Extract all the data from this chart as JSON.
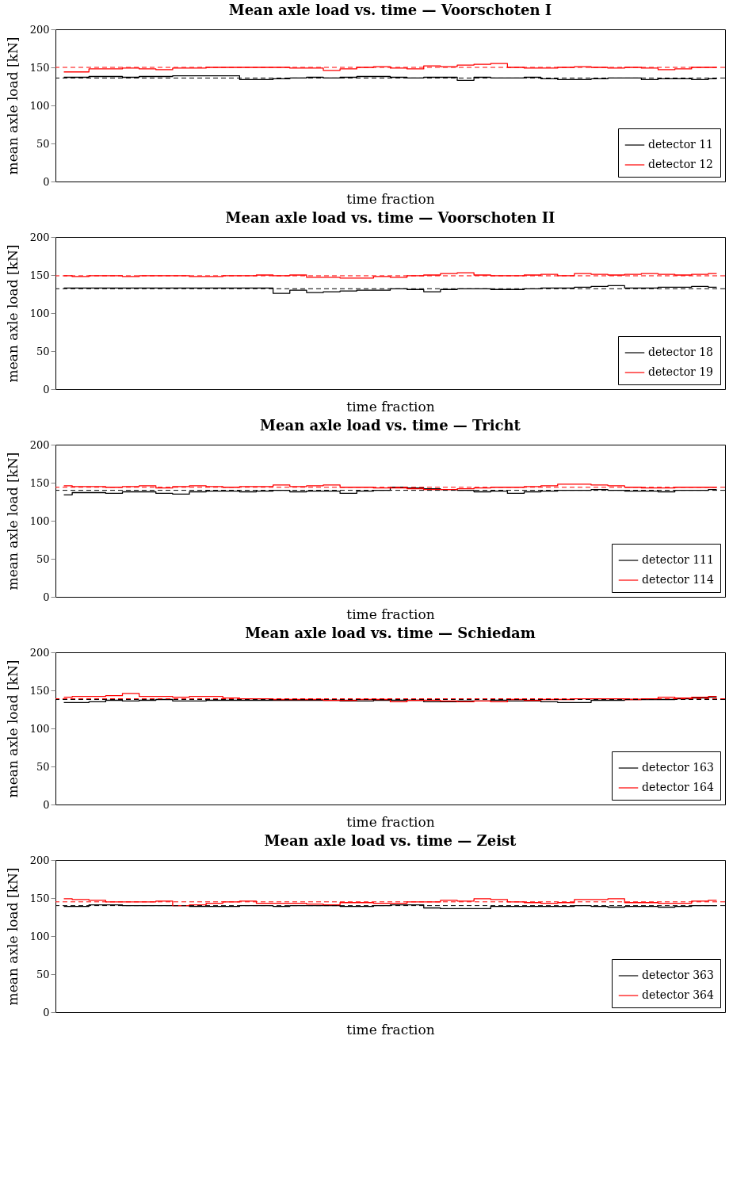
{
  "chart_data": [
    {
      "type": "step",
      "title": "Mean axle load vs. time — Voorschoten I",
      "xlabel": "time fraction",
      "ylabel": "mean axle load [kN]",
      "categories": [
        null,
        null,
        null,
        null,
        null,
        null,
        null,
        null,
        null,
        null,
        null,
        null,
        null,
        null,
        null,
        null,
        null,
        null,
        null,
        null,
        null,
        null,
        null,
        null,
        null,
        null,
        null,
        null,
        null,
        null,
        null,
        null,
        null,
        null,
        null,
        null,
        null,
        null,
        null,
        null
      ],
      "ylim": [
        0,
        200
      ],
      "yticks": [
        0,
        50,
        100,
        150,
        200
      ],
      "grid": false,
      "legend": "bottom right",
      "series": [
        {
          "name": "detector 11",
          "color": "#000000",
          "values": [
            137,
            137,
            138,
            138,
            137,
            138,
            138,
            139,
            139,
            139,
            139,
            134,
            134,
            135,
            136,
            137,
            136,
            137,
            138,
            138,
            137,
            136,
            137,
            137,
            133,
            137,
            136,
            136,
            137,
            135,
            134,
            134,
            135,
            136,
            136,
            134,
            135,
            135,
            134,
            135
          ]
        },
        {
          "name": "detector 12",
          "color": "#ff0000",
          "values": [
            144,
            144,
            148,
            148,
            149,
            148,
            147,
            149,
            149,
            150,
            150,
            150,
            150,
            150,
            149,
            149,
            146,
            148,
            150,
            151,
            149,
            148,
            152,
            151,
            153,
            154,
            155,
            150,
            149,
            149,
            150,
            151,
            150,
            149,
            150,
            149,
            147,
            148,
            150,
            150
          ]
        }
      ],
      "ref_lines": [
        {
          "axis": "y",
          "value": 136,
          "color": "#000000",
          "line_style": "dashed"
        },
        {
          "axis": "y",
          "value": 150,
          "color": "#ff0000",
          "line_style": "dashed"
        }
      ]
    },
    {
      "type": "step",
      "title": "Mean axle load vs. time — Voorschoten II",
      "xlabel": "time fraction",
      "ylabel": "mean axle load [kN]",
      "categories": [
        null,
        null,
        null,
        null,
        null,
        null,
        null,
        null,
        null,
        null,
        null,
        null,
        null,
        null,
        null,
        null,
        null,
        null,
        null,
        null,
        null,
        null,
        null,
        null,
        null,
        null,
        null,
        null,
        null,
        null,
        null,
        null,
        null,
        null,
        null,
        null,
        null,
        null,
        null,
        null
      ],
      "ylim": [
        0,
        200
      ],
      "yticks": [
        0,
        50,
        100,
        150,
        200
      ],
      "grid": false,
      "legend": "bottom right",
      "series": [
        {
          "name": "detector 18",
          "color": "#000000",
          "values": [
            133,
            133,
            133,
            133,
            133,
            133,
            133,
            133,
            133,
            133,
            133,
            133,
            133,
            126,
            130,
            127,
            128,
            129,
            130,
            130,
            132,
            131,
            128,
            131,
            132,
            132,
            131,
            131,
            132,
            133,
            133,
            134,
            135,
            136,
            133,
            133,
            134,
            134,
            135,
            134
          ]
        },
        {
          "name": "detector 19",
          "color": "#ff0000",
          "values": [
            149,
            148,
            149,
            149,
            148,
            149,
            149,
            149,
            148,
            148,
            149,
            149,
            150,
            149,
            150,
            147,
            147,
            146,
            146,
            148,
            147,
            149,
            150,
            152,
            153,
            150,
            149,
            149,
            150,
            151,
            149,
            152,
            151,
            150,
            151,
            152,
            151,
            150,
            151,
            152
          ]
        }
      ],
      "ref_lines": [
        {
          "axis": "y",
          "value": 132,
          "color": "#000000",
          "line_style": "dashed"
        },
        {
          "axis": "y",
          "value": 149,
          "color": "#ff0000",
          "line_style": "dashed"
        }
      ]
    },
    {
      "type": "step",
      "title": "Mean axle load vs. time — Tricht",
      "xlabel": "time fraction",
      "ylabel": "mean axle load [kN]",
      "categories": [
        null,
        null,
        null,
        null,
        null,
        null,
        null,
        null,
        null,
        null,
        null,
        null,
        null,
        null,
        null,
        null,
        null,
        null,
        null,
        null,
        null,
        null,
        null,
        null,
        null,
        null,
        null,
        null,
        null,
        null,
        null,
        null,
        null,
        null,
        null,
        null,
        null,
        null,
        null,
        null
      ],
      "ylim": [
        0,
        200
      ],
      "yticks": [
        0,
        50,
        100,
        150,
        200
      ],
      "grid": false,
      "legend": "bottom right",
      "series": [
        {
          "name": "detector 111",
          "color": "#000000",
          "values": [
            134,
            137,
            137,
            136,
            138,
            138,
            136,
            135,
            138,
            139,
            139,
            138,
            139,
            140,
            138,
            139,
            139,
            136,
            139,
            140,
            144,
            143,
            142,
            141,
            140,
            138,
            139,
            136,
            138,
            139,
            140,
            140,
            141,
            140,
            139,
            139,
            138,
            140,
            140,
            141
          ]
        },
        {
          "name": "detector 114",
          "color": "#ff0000",
          "values": [
            146,
            145,
            145,
            144,
            145,
            146,
            143,
            145,
            146,
            145,
            144,
            145,
            145,
            147,
            145,
            146,
            147,
            144,
            144,
            143,
            143,
            142,
            141,
            141,
            142,
            143,
            144,
            144,
            145,
            146,
            148,
            148,
            147,
            146,
            144,
            143,
            143,
            144,
            144,
            144
          ]
        }
      ],
      "ref_lines": [
        {
          "axis": "y",
          "value": 140,
          "color": "#000000",
          "line_style": "dashed"
        },
        {
          "axis": "y",
          "value": 144,
          "color": "#ff0000",
          "line_style": "dashed"
        }
      ]
    },
    {
      "type": "step",
      "title": "Mean axle load vs. time — Schiedam",
      "xlabel": "time fraction",
      "ylabel": "mean axle load [kN]",
      "categories": [
        null,
        null,
        null,
        null,
        null,
        null,
        null,
        null,
        null,
        null,
        null,
        null,
        null,
        null,
        null,
        null,
        null,
        null,
        null,
        null,
        null,
        null,
        null,
        null,
        null,
        null,
        null,
        null,
        null,
        null,
        null,
        null,
        null,
        null,
        null,
        null,
        null,
        null,
        null,
        null
      ],
      "ylim": [
        0,
        200
      ],
      "yticks": [
        0,
        50,
        100,
        150,
        200
      ],
      "grid": false,
      "legend": "bottom right",
      "series": [
        {
          "name": "detector 163",
          "color": "#000000",
          "values": [
            134,
            134,
            135,
            137,
            136,
            137,
            138,
            136,
            136,
            137,
            137,
            137,
            137,
            137,
            137,
            137,
            137,
            136,
            136,
            137,
            137,
            137,
            135,
            135,
            136,
            136,
            137,
            136,
            136,
            135,
            134,
            134,
            137,
            137,
            138,
            138,
            138,
            139,
            140,
            141
          ]
        },
        {
          "name": "detector 164",
          "color": "#ff0000",
          "values": [
            141,
            142,
            142,
            143,
            146,
            142,
            142,
            141,
            142,
            142,
            140,
            139,
            139,
            138,
            138,
            138,
            137,
            137,
            138,
            138,
            135,
            137,
            137,
            136,
            135,
            136,
            135,
            138,
            137,
            138,
            138,
            139,
            139,
            139,
            138,
            139,
            141,
            140,
            141,
            142
          ]
        }
      ],
      "ref_lines": [
        {
          "axis": "y",
          "value": 138,
          "color": "#000000",
          "line_style": "dashed"
        },
        {
          "axis": "y",
          "value": 139,
          "color": "#ff0000",
          "line_style": "dashed"
        }
      ]
    },
    {
      "type": "step",
      "title": "Mean axle load vs. time — Zeist",
      "xlabel": "time fraction",
      "ylabel": "mean axle load [kN]",
      "categories": [
        null,
        null,
        null,
        null,
        null,
        null,
        null,
        null,
        null,
        null,
        null,
        null,
        null,
        null,
        null,
        null,
        null,
        null,
        null,
        null,
        null,
        null,
        null,
        null,
        null,
        null,
        null,
        null,
        null,
        null,
        null,
        null,
        null,
        null,
        null,
        null,
        null,
        null,
        null,
        null
      ],
      "ylim": [
        0,
        200
      ],
      "yticks": [
        0,
        50,
        100,
        150,
        200
      ],
      "grid": false,
      "legend": "bottom right",
      "series": [
        {
          "name": "detector 363",
          "color": "#000000",
          "values": [
            139,
            139,
            141,
            141,
            140,
            140,
            140,
            140,
            139,
            139,
            139,
            140,
            140,
            139,
            140,
            140,
            140,
            139,
            139,
            140,
            141,
            141,
            137,
            136,
            136,
            136,
            139,
            139,
            139,
            139,
            139,
            140,
            139,
            138,
            139,
            139,
            138,
            139,
            140,
            140
          ]
        },
        {
          "name": "detector 364",
          "color": "#ff0000",
          "values": [
            149,
            148,
            147,
            145,
            145,
            145,
            146,
            140,
            141,
            143,
            145,
            146,
            143,
            143,
            143,
            142,
            141,
            144,
            144,
            143,
            143,
            145,
            145,
            147,
            146,
            149,
            148,
            145,
            144,
            143,
            144,
            148,
            148,
            149,
            144,
            144,
            143,
            143,
            146,
            147
          ]
        }
      ],
      "ref_lines": [
        {
          "axis": "y",
          "value": 140,
          "color": "#000000",
          "line_style": "dashed"
        },
        {
          "axis": "y",
          "value": 145,
          "color": "#ff0000",
          "line_style": "dashed"
        }
      ]
    }
  ]
}
